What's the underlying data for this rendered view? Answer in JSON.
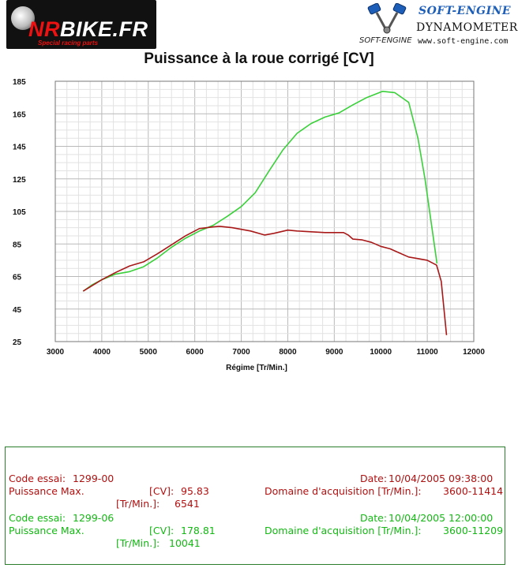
{
  "header": {
    "left_logo": {
      "brand_prefix": "NR",
      "brand_main": "BIKE.FR",
      "tagline": "Special racing parts"
    },
    "right_logo": {
      "brand": "SOFT-ENGINE",
      "brand_small": "SOFT-ENGINE",
      "line2": "DYNAMOMETERS",
      "url": "www.soft-engine.com"
    }
  },
  "chart_data": {
    "type": "line",
    "title": "Puissance à la roue corrigé [CV]",
    "xlabel": "Régime [Tr/Min.]",
    "ylabel": "",
    "xlim": [
      3000,
      12000
    ],
    "ylim": [
      25,
      185
    ],
    "xticks": [
      3000,
      4000,
      5000,
      6000,
      7000,
      8000,
      9000,
      10000,
      11000,
      12000
    ],
    "yticks": [
      25,
      45,
      65,
      85,
      105,
      125,
      145,
      165,
      185
    ],
    "grid": true,
    "series": [
      {
        "color": "#a81818",
        "x": [
          3600,
          3800,
          4000,
          4300,
          4600,
          4900,
          5200,
          5500,
          5800,
          6100,
          6400,
          6541,
          6800,
          7200,
          7500,
          7700,
          8000,
          8200,
          8500,
          8800,
          9000,
          9200,
          9300,
          9400,
          9600,
          9800,
          10000,
          10200,
          10400,
          10600,
          10800,
          11000,
          11200,
          11300,
          11414
        ],
        "y": [
          56,
          59.5,
          63,
          67.5,
          71.5,
          74,
          79,
          84.5,
          90,
          94.5,
          95.5,
          95.83,
          95,
          93,
          90.5,
          91.5,
          93.5,
          93,
          92.5,
          92,
          92,
          92,
          90.5,
          88,
          87.5,
          86,
          83.5,
          82,
          79.5,
          77,
          76,
          75,
          72,
          62,
          29
        ]
      },
      {
        "color": "#3ad03a",
        "x": [
          3600,
          3800,
          4000,
          4300,
          4600,
          4900,
          5200,
          5500,
          5800,
          6100,
          6400,
          6700,
          7000,
          7300,
          7600,
          7900,
          8200,
          8500,
          8800,
          9100,
          9400,
          9700,
          10041,
          10300,
          10600,
          10800,
          10950,
          11100,
          11209
        ],
        "y": [
          56,
          60,
          63,
          66.5,
          68,
          71,
          76.5,
          83,
          88.5,
          93,
          96.5,
          102,
          108,
          116.5,
          130,
          143,
          153,
          159,
          163,
          165.5,
          170.5,
          175,
          178.81,
          178,
          172,
          150,
          125,
          95,
          73
        ]
      }
    ]
  },
  "info": {
    "test1": {
      "code_label": "Code essai:",
      "code_value": "1299-00",
      "date_label": "Date:",
      "date_value": "10/04/2005 09:38:00",
      "power_label": "Puissance Max.",
      "power_unit": "[CV]:",
      "power_value": "95.83",
      "domain_label": "Domaine d'acquisition [Tr/Min.]:",
      "domain_value": "3600-11414",
      "rpm_unit": "[Tr/Min.]:",
      "rpm_value": "6541"
    },
    "test2": {
      "code_label": "Code essai:",
      "code_value": "1299-06",
      "date_label": "Date:",
      "date_value": "10/04/2005 12:00:00",
      "power_label": "Puissance Max.",
      "power_unit": "[CV]:",
      "power_value": "178.81",
      "domain_label": "Domaine d'acquisition [Tr/Min.]:",
      "domain_value": "3600-11209",
      "rpm_unit": "[Tr/Min.]:",
      "rpm_value": "10041"
    }
  }
}
